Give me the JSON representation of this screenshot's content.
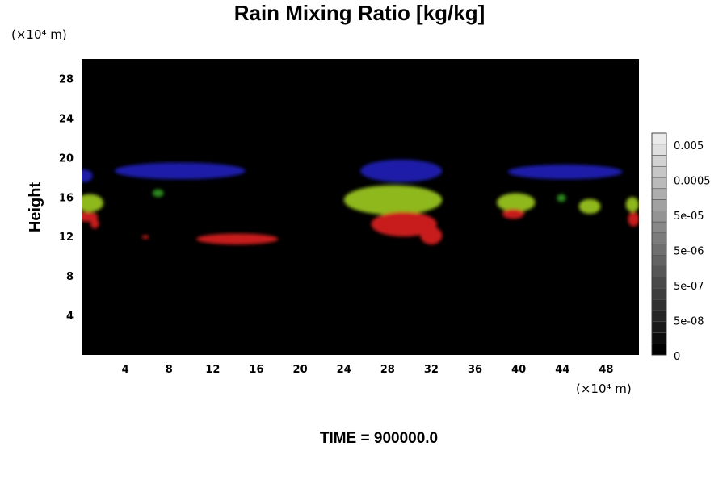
{
  "chart_data": {
    "type": "heatmap",
    "title": "Rain Mixing Ratio [kg/kg]",
    "xlabel": "",
    "ylabel": "Height",
    "x_unit": "(×10⁴ m)",
    "y_unit": "(×10⁴ m)",
    "xlim": [
      0,
      51
    ],
    "ylim": [
      0,
      30
    ],
    "x_ticks": [
      "4",
      "8",
      "12",
      "16",
      "20",
      "24",
      "28",
      "32",
      "36",
      "40",
      "44",
      "48"
    ],
    "y_ticks": [
      "4",
      "8",
      "12",
      "16",
      "20",
      "24",
      "28"
    ],
    "colorbar": {
      "placement": "right",
      "labels": [
        "0.005",
        "0.0005",
        "5e-05",
        "5e-06",
        "5e-07",
        "5e-08",
        "0"
      ]
    },
    "background_color": "#000000",
    "regions": [
      {
        "color": "#1a1aa8",
        "x": [
          -0.5,
          1.0
        ],
        "y": [
          17.5,
          18.8
        ]
      },
      {
        "color": "#1a1aa8",
        "x": [
          3.0,
          15.0
        ],
        "y": [
          17.8,
          19.5
        ]
      },
      {
        "color": "#1a1aa8",
        "x": [
          25.5,
          33.0
        ],
        "y": [
          17.5,
          19.8
        ]
      },
      {
        "color": "#1a1aa8",
        "x": [
          39.0,
          49.5
        ],
        "y": [
          17.8,
          19.3
        ]
      },
      {
        "color": "#8fb81c",
        "x": [
          -0.5,
          2.0
        ],
        "y": [
          14.5,
          16.3
        ]
      },
      {
        "color": "#2a8a1c",
        "x": [
          6.5,
          7.5
        ],
        "y": [
          16.0,
          16.8
        ]
      },
      {
        "color": "#8fb81c",
        "x": [
          24.0,
          33.0
        ],
        "y": [
          14.2,
          17.2
        ]
      },
      {
        "color": "#8fb81c",
        "x": [
          38.0,
          41.5
        ],
        "y": [
          14.5,
          16.4
        ]
      },
      {
        "color": "#2a8a1c",
        "x": [
          43.5,
          44.3
        ],
        "y": [
          15.5,
          16.3
        ]
      },
      {
        "color": "#8fb81c",
        "x": [
          45.5,
          47.5
        ],
        "y": [
          14.3,
          15.8
        ]
      },
      {
        "color": "#8fb81c",
        "x": [
          49.8,
          51.0
        ],
        "y": [
          14.5,
          16.0
        ]
      },
      {
        "color": "#c81c1c",
        "x": [
          -0.5,
          1.5
        ],
        "y": [
          13.5,
          14.5
        ]
      },
      {
        "color": "#c81c1c",
        "x": [
          0.8,
          1.6
        ],
        "y": [
          12.8,
          13.8
        ]
      },
      {
        "color": "#c81c1c",
        "x": [
          5.5,
          6.2
        ],
        "y": [
          11.8,
          12.1
        ]
      },
      {
        "color": "#c81c1c",
        "x": [
          10.5,
          18.0
        ],
        "y": [
          11.2,
          12.3
        ]
      },
      {
        "color": "#c81c1c",
        "x": [
          26.5,
          32.5
        ],
        "y": [
          12.0,
          14.5
        ]
      },
      {
        "color": "#c81c1c",
        "x": [
          31.0,
          33.0
        ],
        "y": [
          11.2,
          13.0
        ]
      },
      {
        "color": "#c81c1c",
        "x": [
          38.5,
          40.5
        ],
        "y": [
          13.8,
          14.8
        ]
      },
      {
        "color": "#c81c1c",
        "x": [
          50.0,
          51.0
        ],
        "y": [
          13.0,
          14.5
        ]
      }
    ]
  },
  "footer": {
    "time_label": "TIME = 900000.0"
  }
}
